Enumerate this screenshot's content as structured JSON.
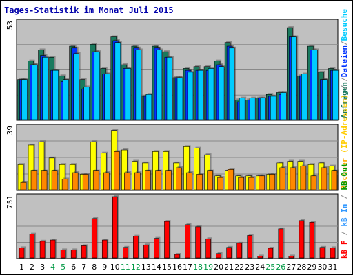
{
  "chart_data": [
    {
      "type": "bar",
      "title": "Tages-Statistik im Monat Juli 2015",
      "panel": "top",
      "ymax_label": "53",
      "ylim": [
        0,
        53
      ],
      "grid": true,
      "categories": [
        "1",
        "2",
        "3",
        "4",
        "5",
        "6",
        "7",
        "8",
        "9",
        "10",
        "11",
        "12",
        "13",
        "14",
        "15",
        "16",
        "17",
        "18",
        "19",
        "20",
        "21",
        "22",
        "23",
        "24",
        "25",
        "26",
        "27",
        "28",
        "29",
        "30",
        "31"
      ],
      "weekend_days": [
        "4",
        "5",
        "11",
        "12",
        "18",
        "19",
        "25",
        "26"
      ],
      "series": [
        {
          "name": "Anfragen",
          "color": "#1a7a5e",
          "values": [
            22,
            32,
            38,
            34,
            24,
            40,
            22,
            41,
            28,
            45,
            30,
            40,
            13,
            40,
            37,
            23,
            28,
            29,
            29,
            32,
            42,
            11,
            11,
            12,
            14,
            15,
            50,
            24,
            40,
            26,
            28
          ]
        },
        {
          "name": "Dateien",
          "color": "#0033ff",
          "values": [
            22,
            30,
            35,
            27,
            21,
            39,
            17,
            37,
            25,
            43,
            28,
            39,
            13,
            39,
            34,
            23,
            27,
            27,
            27,
            30,
            40,
            10,
            11,
            12,
            13,
            14,
            45,
            24,
            38,
            22,
            27
          ]
        },
        {
          "name": "Besuche",
          "color": "#00ccff",
          "values": [
            22,
            30,
            34,
            27,
            22,
            36,
            18,
            37,
            25,
            42,
            28,
            38,
            14,
            38,
            34,
            23,
            26,
            27,
            28,
            29,
            39,
            12,
            12,
            12,
            13,
            15,
            45,
            25,
            38,
            22,
            27
          ]
        }
      ]
    },
    {
      "type": "bar",
      "panel": "middle",
      "ymax_label": "39",
      "ylim": [
        0,
        39
      ],
      "grid": true,
      "series": [
        {
          "name": "Rechner (IP-Adressen)",
          "color": "#ffff00",
          "values": [
            16,
            28,
            30,
            20,
            16,
            16,
            10,
            30,
            23,
            37,
            25,
            18,
            17,
            24,
            24,
            17,
            27,
            26,
            22,
            9,
            12,
            9,
            9,
            9,
            10,
            17,
            18,
            18,
            16,
            17,
            15
          ]
        },
        {
          "name": "Rechner (IP-Adressen)",
          "color": "#ff8800",
          "values": [
            5,
            12,
            12,
            12,
            7,
            11,
            10,
            12,
            11,
            24,
            11,
            11,
            12,
            12,
            12,
            14,
            11,
            10,
            12,
            8,
            13,
            8,
            8,
            9,
            10,
            14,
            14,
            15,
            9,
            14,
            12
          ]
        }
      ]
    },
    {
      "type": "bar",
      "panel": "bottom",
      "ymax_label": "751",
      "ylim": [
        0,
        751
      ],
      "grid": true,
      "series": [
        {
          "name": "kB F",
          "color": "#ff0000",
          "values": [
            130,
            295,
            210,
            225,
            105,
            105,
            155,
            485,
            225,
            751,
            135,
            270,
            165,
            245,
            450,
            50,
            410,
            385,
            240,
            60,
            135,
            185,
            280,
            30,
            125,
            360,
            30,
            460,
            440,
            135,
            130
          ]
        }
      ]
    }
  ],
  "legend_right": {
    "top": [
      {
        "text": "Anfragen",
        "color": "#1a7a5e"
      },
      {
        "text": "/",
        "color": "#888888"
      },
      {
        "text": "Dateien",
        "color": "#0033ff"
      },
      {
        "text": "/",
        "color": "#888888"
      },
      {
        "text": "Besuche",
        "color": "#00ccff"
      }
    ],
    "middle": [
      {
        "text": "Rechner",
        "color": "#ffaa00"
      },
      {
        "text": " (IP-Adressen)",
        "color": "#ffcc00"
      },
      {
        "text": " / ",
        "color": "#888888"
      }
    ],
    "bottom": [
      {
        "text": "kB F",
        "color": "#ff0000"
      },
      {
        "text": " / ",
        "color": "#888888"
      },
      {
        "text": "kB In",
        "color": "#3399ff"
      },
      {
        "text": " / ",
        "color": "#888888"
      },
      {
        "text": "kB Out",
        "color": "#009900"
      }
    ]
  },
  "colors": {
    "plot_bg": "#c0c0c0",
    "border": "#000000",
    "grid": "#888888",
    "title": "#0000aa",
    "weekday_tick": "#000000",
    "weekend_tick": "#009944"
  }
}
